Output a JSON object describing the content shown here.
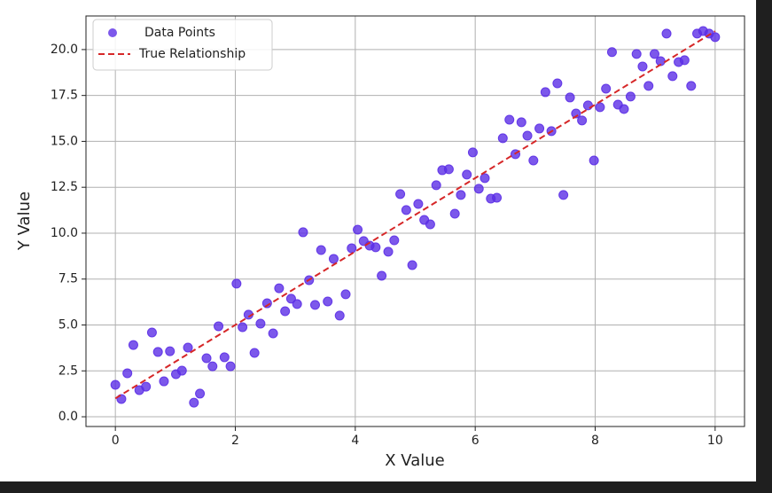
{
  "chart_data": {
    "type": "scatter",
    "xlabel": "X Value",
    "ylabel": "Y Value",
    "x": [
      0,
      0.1,
      0.2,
      0.3,
      0.4,
      0.51,
      0.61,
      0.71,
      0.81,
      0.91,
      1.01,
      1.11,
      1.21,
      1.31,
      1.41,
      1.52,
      1.62,
      1.72,
      1.82,
      1.92,
      2.02,
      2.12,
      2.22,
      2.32,
      2.42,
      2.53,
      2.63,
      2.73,
      2.83,
      2.93,
      3.03,
      3.13,
      3.23,
      3.33,
      3.43,
      3.54,
      3.64,
      3.74,
      3.84,
      3.94,
      4.04,
      4.14,
      4.24,
      4.34,
      4.44,
      4.55,
      4.65,
      4.75,
      4.85,
      4.95,
      5.05,
      5.15,
      5.25,
      5.35,
      5.45,
      5.56,
      5.66,
      5.76,
      5.86,
      5.96,
      6.06,
      6.16,
      6.26,
      6.36,
      6.46,
      6.57,
      6.67,
      6.77,
      6.87,
      6.97,
      7.07,
      7.17,
      7.27,
      7.37,
      7.47,
      7.58,
      7.68,
      7.78,
      7.88,
      7.98,
      8.08,
      8.18,
      8.28,
      8.38,
      8.48,
      8.59,
      8.69,
      8.79,
      8.89,
      8.99,
      9.09,
      9.19,
      9.29,
      9.39,
      9.49,
      9.6,
      9.7,
      9.8,
      9.9,
      10
    ],
    "series": [
      {
        "name": "Data Points",
        "type": "scatter",
        "color": "#5b2ee6",
        "values": [
          1.74,
          0.97,
          2.37,
          3.91,
          1.45,
          1.64,
          4.59,
          3.53,
          1.93,
          3.57,
          2.32,
          2.51,
          3.77,
          0.77,
          1.26,
          3.19,
          2.75,
          4.93,
          3.24,
          2.75,
          7.25,
          4.88,
          5.56,
          3.48,
          5.07,
          6.18,
          4.54,
          7.0,
          5.75,
          6.43,
          6.14,
          10.05,
          7.44,
          6.09,
          9.08,
          6.28,
          8.6,
          5.51,
          6.67,
          9.18,
          10.19,
          9.57,
          9.32,
          9.23,
          7.68,
          8.99,
          9.61,
          12.13,
          11.26,
          8.26,
          11.59,
          10.72,
          10.48,
          12.61,
          13.43,
          13.48,
          11.06,
          12.08,
          13.19,
          14.4,
          12.42,
          13.0,
          11.88,
          11.93,
          15.17,
          16.18,
          14.3,
          16.04,
          15.31,
          13.96,
          15.7,
          17.68,
          15.56,
          18.16,
          12.08,
          17.39,
          16.52,
          16.14,
          16.96,
          13.96,
          16.86,
          17.87,
          19.86,
          17.0,
          16.76,
          17.44,
          19.76,
          19.08,
          18.02,
          19.76,
          19.37,
          20.87,
          18.55,
          19.32,
          19.42,
          18.02,
          20.87,
          21.01,
          20.87,
          20.68
        ]
      },
      {
        "name": "True Relationship",
        "type": "line",
        "color": "#d62728",
        "linestyle": "dashed",
        "x": [
          0,
          10
        ],
        "values": [
          1,
          21
        ]
      }
    ],
    "xlim": [
      -0.49,
      10.49
    ],
    "ylim": [
      -0.53,
      21.83
    ],
    "xticks": [
      0,
      2,
      4,
      6,
      8,
      10
    ],
    "yticks": [
      {
        "value": 0,
        "label": "0.0"
      },
      2.5,
      {
        "value": 5,
        "label": "5.0"
      },
      7.5,
      {
        "value": 10,
        "label": "10.0"
      },
      12.5,
      {
        "value": 15,
        "label": "15.0"
      },
      17.5,
      {
        "value": 20,
        "label": "20.0"
      }
    ],
    "grid": true,
    "legend": "upper-left"
  }
}
